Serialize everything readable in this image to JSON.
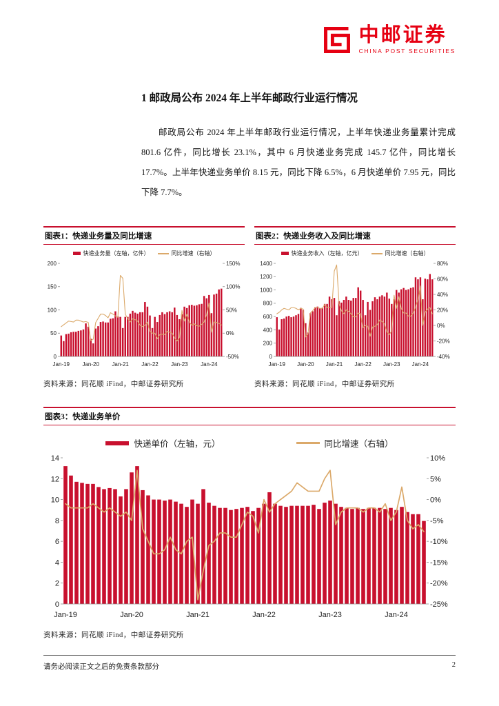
{
  "header": {
    "brand_cn": "中邮证券",
    "brand_en": "CHINA POST SECURITIES",
    "brand_color": "#E60012"
  },
  "section": {
    "title": "1 邮政局公布 2024 年上半年邮政行业运行情况",
    "body": "邮政局公布 2024 年上半年邮政行业运行情况，上半年快递业务量累计完成 801.6 亿件，同比增长 23.1%，其中 6 月快递业务完成 145.7 亿件，同比增长 17.7%。上半年快递业务单价 8.15 元，同比下降 6.5%，6 月快递单价 7.95 元，同比下降 7.7%。"
  },
  "source_note": "资料来源：同花顺 iFind，中邮证券研究所",
  "footer": {
    "disclaimer": "请务必阅读正文之后的免责条款部分",
    "page_number": "2"
  },
  "chart_data": [
    {
      "type": "bar+line",
      "title": "图表1：快递业务量及同比增速",
      "x_start": "Jan-19",
      "x_freq": "monthly",
      "x_tick_labels": [
        "Jan-19",
        "Jan-20",
        "Jan-21",
        "Jan-22",
        "Jan-23",
        "Jan-24"
      ],
      "x_tick_positions": [
        0,
        12,
        24,
        36,
        48,
        60
      ],
      "left_axis": {
        "min": 0,
        "max": 200,
        "step": 50
      },
      "right_axis": {
        "min": -50,
        "max": 150,
        "step": 50,
        "suffix": "%"
      },
      "bar_color": "#C8102E",
      "line_color": "#DBA96A",
      "bar_series": {
        "name": "快递业务量（左轴，亿件）",
        "values": [
          45,
          33,
          48,
          49,
          52,
          53,
          53,
          55,
          56,
          58,
          71,
          64,
          38,
          28,
          60,
          65,
          74,
          75,
          73,
          73,
          81,
          82,
          97,
          86,
          85,
          61,
          85,
          85,
          92,
          98,
          94,
          92,
          95,
          95,
          117,
          107,
          88,
          61,
          85,
          74,
          89,
          95,
          91,
          95,
          97,
          95,
          105,
          89,
          80,
          91,
          107,
          104,
          110,
          111,
          109,
          110,
          112,
          113,
          130,
          125,
          132,
          93,
          133,
          135,
          144,
          145.7
        ]
      },
      "line_series": {
        "name": "同比增速（右轴）",
        "unit": "%",
        "values": [
          14,
          18,
          22,
          26,
          25,
          24,
          28,
          28,
          26,
          24,
          25,
          23,
          -16,
          -13,
          23,
          32,
          41,
          41,
          38,
          33,
          44,
          41,
          37,
          34,
          124,
          118,
          41,
          31,
          24,
          31,
          29,
          26,
          17,
          14,
          17,
          24,
          4,
          0,
          0,
          -12,
          -3,
          -2,
          -3,
          4,
          2,
          0,
          -10,
          -17,
          -9,
          49,
          26,
          41,
          24,
          17,
          20,
          16,
          15,
          19,
          24,
          40,
          65,
          2,
          24,
          23,
          21,
          17.7
        ]
      }
    },
    {
      "type": "bar+line",
      "title": "图表2：快递业务收入及同比增速",
      "x_start": "Jan-19",
      "x_freq": "monthly",
      "x_tick_labels": [
        "Jan-19",
        "Jan-20",
        "Jan-21",
        "Jan-22",
        "Jan-23",
        "Jan-24"
      ],
      "x_tick_positions": [
        0,
        12,
        24,
        36,
        48,
        60
      ],
      "left_axis": {
        "min": 0,
        "max": 1400,
        "step": 200
      },
      "right_axis": {
        "min": -40,
        "max": 80,
        "step": 20,
        "suffix": "%"
      },
      "bar_color": "#C8102E",
      "line_color": "#DBA96A",
      "bar_series": {
        "name": "快递业务收入（左轴，亿元）",
        "values": [
          590,
          405,
          560,
          570,
          600,
          610,
          590,
          600,
          620,
          640,
          730,
          700,
          500,
          360,
          650,
          680,
          740,
          750,
          720,
          730,
          790,
          790,
          900,
          860,
          880,
          620,
          830,
          810,
          850,
          900,
          850,
          840,
          880,
          880,
          1040,
          990,
          850,
          620,
          820,
          700,
          830,
          890,
          860,
          900,
          920,
          900,
          960,
          870,
          790,
          860,
          1000,
          960,
          1010,
          1030,
          1000,
          1010,
          1030,
          1040,
          1190,
          1160,
          1190,
          860,
          1170,
          1160,
          1240,
          1160
        ]
      },
      "line_series": {
        "name": "同比增速（右轴）",
        "unit": "%",
        "values": [
          15,
          17,
          20,
          22,
          21,
          20,
          23,
          23,
          22,
          20,
          22,
          21,
          -15,
          -11,
          16,
          19,
          23,
          23,
          22,
          22,
          27,
          23,
          23,
          23,
          70,
          78,
          28,
          19,
          15,
          20,
          18,
          15,
          11,
          11,
          16,
          15,
          -3,
          0,
          -1,
          -14,
          -2,
          -1,
          1,
          7,
          5,
          2,
          -8,
          -12,
          -7,
          39,
          22,
          37,
          22,
          16,
          16,
          12,
          12,
          16,
          24,
          33,
          51,
          0,
          17,
          21,
          23,
          15
        ]
      }
    },
    {
      "type": "bar+line",
      "title": "图表3：快递业务单价",
      "x_start": "Jan-19",
      "x_freq": "monthly",
      "x_tick_labels": [
        "Jan-19",
        "Jan-20",
        "Jan-21",
        "Jan-22",
        "Jan-23",
        "Jan-24"
      ],
      "x_tick_positions": [
        0,
        12,
        24,
        36,
        48,
        60
      ],
      "left_axis": {
        "min": 0,
        "max": 14,
        "step": 2
      },
      "right_axis": {
        "min": -25,
        "max": 10,
        "step": 5,
        "suffix": "%"
      },
      "bar_color": "#C8102E",
      "line_color": "#DBA96A",
      "bar_series": {
        "name": "快递单价（左轴，元）",
        "values": [
          13.2,
          12.3,
          11.7,
          11.6,
          11.5,
          11.5,
          11.2,
          11.0,
          11.1,
          11.0,
          10.3,
          11.0,
          12.6,
          13.2,
          10.9,
          10.4,
          10.0,
          10.0,
          9.9,
          10.0,
          9.8,
          9.6,
          9.3,
          10.0,
          9.6,
          11.0,
          9.7,
          9.4,
          9.2,
          9.2,
          9.0,
          9.1,
          9.2,
          9.3,
          8.9,
          9.2,
          9.6,
          10.7,
          9.6,
          9.4,
          9.3,
          9.4,
          9.4,
          9.4,
          9.4,
          9.5,
          9.1,
          9.7,
          9.9,
          9.6,
          9.3,
          9.2,
          9.1,
          9.2,
          9.1,
          9.2,
          9.2,
          9.2,
          9.1,
          9.2,
          9.0,
          9.3,
          8.8,
          8.6,
          8.6,
          7.95
        ]
      },
      "line_series": {
        "name": "同比增速（右轴）",
        "unit": "%",
        "values": [
          -1,
          -2,
          -2,
          -2,
          -2,
          -1,
          -2,
          -3,
          -2,
          -3,
          -4,
          -3,
          -5,
          7,
          -7,
          -10,
          -13,
          -13,
          -12,
          -9,
          -12,
          -13,
          -10,
          -9,
          -24,
          -17,
          -11,
          -10,
          -8,
          -8,
          -9,
          -9,
          -6,
          -3,
          -4,
          -8,
          0,
          -3,
          -1,
          0,
          1,
          2,
          4,
          3,
          2,
          2,
          2,
          5,
          7,
          -6,
          -3,
          -2,
          -2,
          -2,
          -3,
          -2,
          -2,
          -3,
          -1,
          -5,
          -3,
          3,
          -5,
          -7,
          -6,
          -7.7
        ]
      }
    }
  ]
}
